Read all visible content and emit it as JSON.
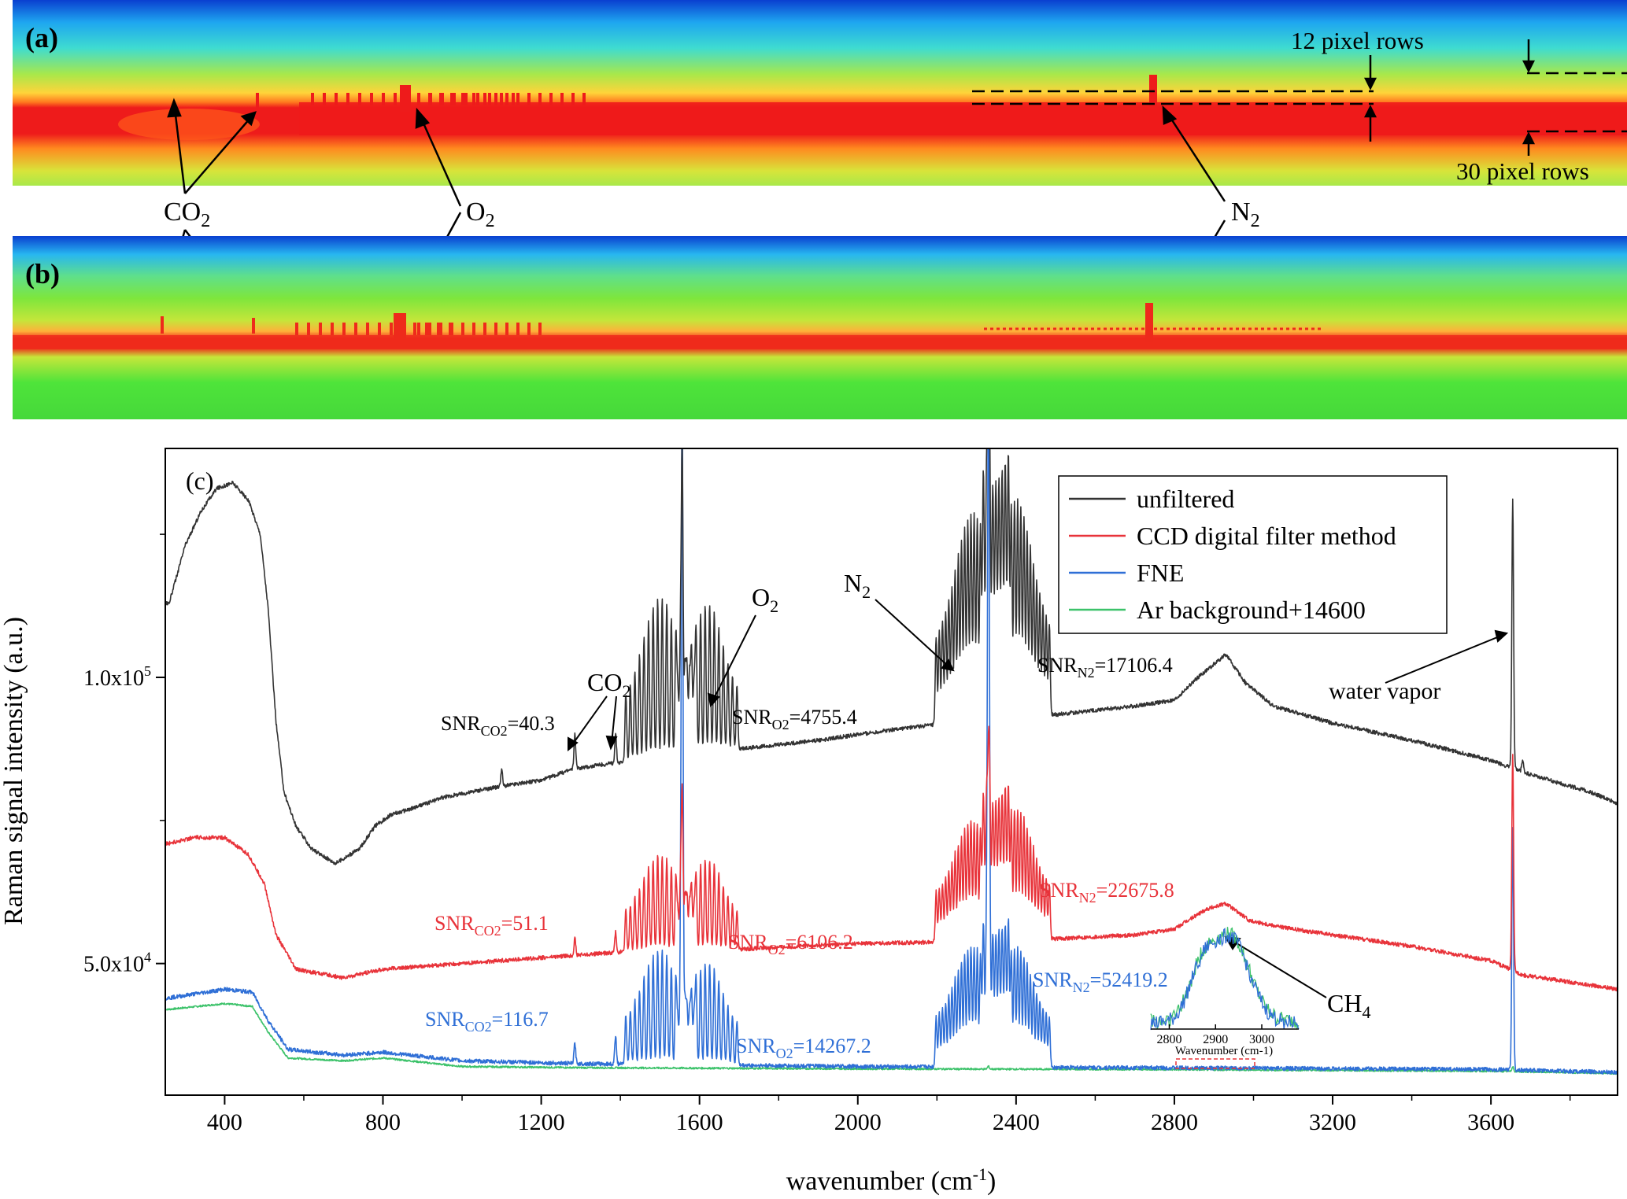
{
  "panels": {
    "a": {
      "tag": "(a)",
      "rows_top": "12 pixel rows",
      "rows_bottom": "30 pixel rows"
    },
    "b": {
      "tag": "(b)"
    },
    "labels": {
      "co2": "CO",
      "o2": "O",
      "n2": "N",
      "sub2": "2"
    }
  },
  "chart_data": {
    "type": "line",
    "panel_tag": "(c)",
    "xlabel": "wavenumber (cm",
    "xlabel_sup": "-1",
    "xlabel_end": ")",
    "ylabel": "Raman signal intensity (a.u.)",
    "xlim": [
      250,
      3920
    ],
    "ylim": [
      27000,
      140000
    ],
    "xticks": [
      400,
      800,
      1200,
      1600,
      2000,
      2400,
      2800,
      3200,
      3600
    ],
    "yticks": [
      {
        "value": 50000,
        "label": "5.0x10"
      },
      {
        "value": 100000,
        "label": "1.0x10"
      }
    ],
    "ytick_sup": [
      "4",
      "5"
    ],
    "legend": {
      "position": "top-right",
      "entries": [
        {
          "name": "unfiltered",
          "color": "#333333"
        },
        {
          "name": "CCD digital filter method",
          "color": "#e8333a"
        },
        {
          "name": "FNE",
          "color": "#2f6fd6"
        },
        {
          "name": "Ar background+14600",
          "color": "#3cc26a"
        }
      ]
    },
    "series": [
      {
        "name": "unfiltered",
        "color": "#333333",
        "baseline": [
          [
            260,
            113000
          ],
          [
            300,
            123000
          ],
          [
            340,
            129000
          ],
          [
            380,
            133000
          ],
          [
            420,
            134000
          ],
          [
            460,
            131000
          ],
          [
            490,
            125000
          ],
          [
            510,
            112000
          ],
          [
            530,
            92000
          ],
          [
            550,
            80000
          ],
          [
            580,
            74000
          ],
          [
            620,
            70000
          ],
          [
            680,
            67500
          ],
          [
            740,
            70000
          ],
          [
            780,
            74000
          ],
          [
            820,
            76000
          ],
          [
            870,
            77000
          ],
          [
            950,
            79000
          ],
          [
            1100,
            81000
          ],
          [
            1200,
            82000
          ],
          [
            1280,
            84000
          ],
          [
            1380,
            85000
          ],
          [
            1500,
            86000
          ],
          [
            1700,
            87500
          ],
          [
            1900,
            89000
          ],
          [
            2100,
            91000
          ],
          [
            2300,
            92500
          ],
          [
            2500,
            93500
          ],
          [
            2700,
            95000
          ],
          [
            2800,
            96000
          ],
          [
            2860,
            100000
          ],
          [
            2930,
            104000
          ],
          [
            2980,
            99000
          ],
          [
            3050,
            95000
          ],
          [
            3200,
            92000
          ],
          [
            3400,
            89000
          ],
          [
            3600,
            85500
          ],
          [
            3700,
            83000
          ],
          [
            3850,
            80000
          ],
          [
            3920,
            78000
          ]
        ],
        "peaks": [
          {
            "x": 1285,
            "height": 6000
          },
          {
            "x": 1388,
            "height": 5000
          },
          {
            "x": 1100,
            "height": 3000
          },
          {
            "x": 1556,
            "height": 40000
          },
          {
            "x": 2330,
            "height": 40000
          },
          {
            "x": 3655,
            "height": 47000
          },
          {
            "x": 3680,
            "height": 2000
          }
        ],
        "branches": [
          {
            "center": 1500,
            "spacing": 11.5,
            "count": 16,
            "height": 28000
          },
          {
            "center": 1620,
            "spacing": 11.5,
            "count": 14,
            "height": 26000
          },
          {
            "center": 2290,
            "spacing": 8,
            "count": 24,
            "height": 36000
          },
          {
            "center": 2400,
            "spacing": 8,
            "count": 22,
            "height": 38000
          }
        ]
      },
      {
        "name": "CCD digital filter method",
        "color": "#e8333a",
        "baseline": [
          [
            260,
            71000
          ],
          [
            320,
            72000
          ],
          [
            400,
            72000
          ],
          [
            460,
            69000
          ],
          [
            500,
            64000
          ],
          [
            530,
            55000
          ],
          [
            580,
            49000
          ],
          [
            700,
            47500
          ],
          [
            800,
            49000
          ],
          [
            1000,
            50000
          ],
          [
            1200,
            51000
          ],
          [
            1400,
            52000
          ],
          [
            1700,
            52500
          ],
          [
            2000,
            53500
          ],
          [
            2400,
            54000
          ],
          [
            2700,
            55000
          ],
          [
            2800,
            56000
          ],
          [
            2880,
            59500
          ],
          [
            2930,
            60500
          ],
          [
            2990,
            57500
          ],
          [
            3100,
            56000
          ],
          [
            3400,
            53000
          ],
          [
            3600,
            50500
          ],
          [
            3680,
            48000
          ],
          [
            3920,
            45500
          ]
        ],
        "peaks": [
          {
            "x": 1285,
            "height": 3000
          },
          {
            "x": 1388,
            "height": 3500
          },
          {
            "x": 1556,
            "height": 20000
          },
          {
            "x": 2330,
            "height": 22000
          },
          {
            "x": 3655,
            "height": 38000
          }
        ],
        "branches": [
          {
            "center": 1500,
            "spacing": 11.5,
            "count": 16,
            "height": 17000
          },
          {
            "center": 1620,
            "spacing": 11.5,
            "count": 14,
            "height": 16000
          },
          {
            "center": 2290,
            "spacing": 8,
            "count": 24,
            "height": 21000
          },
          {
            "center": 2400,
            "spacing": 8,
            "count": 22,
            "height": 23000
          }
        ]
      },
      {
        "name": "FNE",
        "color": "#2f6fd6",
        "baseline": [
          [
            260,
            44000
          ],
          [
            400,
            45500
          ],
          [
            470,
            45000
          ],
          [
            510,
            40000
          ],
          [
            560,
            35000
          ],
          [
            700,
            34000
          ],
          [
            800,
            34500
          ],
          [
            1000,
            33000
          ],
          [
            1300,
            32500
          ],
          [
            2000,
            32000
          ],
          [
            2700,
            31800
          ],
          [
            3600,
            31500
          ],
          [
            3920,
            31000
          ]
        ],
        "peaks": [
          {
            "x": 1285,
            "height": 3500
          },
          {
            "x": 1388,
            "height": 5000
          },
          {
            "x": 1556,
            "height": 110000
          },
          {
            "x": 2330,
            "height": 112000
          },
          {
            "x": 3655,
            "height": 42000
          }
        ],
        "branches": [
          {
            "center": 1500,
            "spacing": 11.5,
            "count": 16,
            "height": 20000
          },
          {
            "center": 1620,
            "spacing": 11.5,
            "count": 14,
            "height": 18000
          },
          {
            "center": 2290,
            "spacing": 8,
            "count": 24,
            "height": 21000
          },
          {
            "center": 2400,
            "spacing": 8,
            "count": 22,
            "height": 21000
          }
        ]
      },
      {
        "name": "Ar background+14600",
        "color": "#3cc26a",
        "baseline": [
          [
            260,
            42000
          ],
          [
            400,
            43000
          ],
          [
            470,
            42500
          ],
          [
            510,
            38000
          ],
          [
            560,
            33500
          ],
          [
            700,
            33000
          ],
          [
            800,
            33500
          ],
          [
            1000,
            32000
          ],
          [
            1300,
            31800
          ],
          [
            2000,
            31600
          ],
          [
            2700,
            31500
          ],
          [
            3600,
            31200
          ],
          [
            3920,
            30800
          ]
        ],
        "peaks": [
          {
            "x": 2330,
            "height": 500
          },
          {
            "x": 3655,
            "height": 900
          }
        ],
        "branches": []
      }
    ],
    "annotations": {
      "co2": "CO",
      "o2": "O",
      "n2": "N",
      "sub2": "2",
      "water": "water vapor",
      "ch4": "CH",
      "ch4_sub": "4",
      "snr_prefix": "SNR",
      "snr_co2_sub": "CO2",
      "snr_o2_sub": "O2",
      "snr_n2_sub": "N2",
      "unfiltered_snr": {
        "co2": "=40.3",
        "o2": "=4755.4",
        "n2": "=17106.4"
      },
      "filter_snr": {
        "co2": "=51.1",
        "o2": "=6106.2",
        "n2": "=22675.8"
      },
      "fne_snr": {
        "co2": "=116.7",
        "o2": "=14267.2",
        "n2": "=52419.2"
      }
    },
    "inset": {
      "x": [
        2760,
        3080
      ],
      "xticks": [
        2800,
        2900,
        3000
      ],
      "xlabel": "Wavenumber (cm-1)"
    }
  }
}
